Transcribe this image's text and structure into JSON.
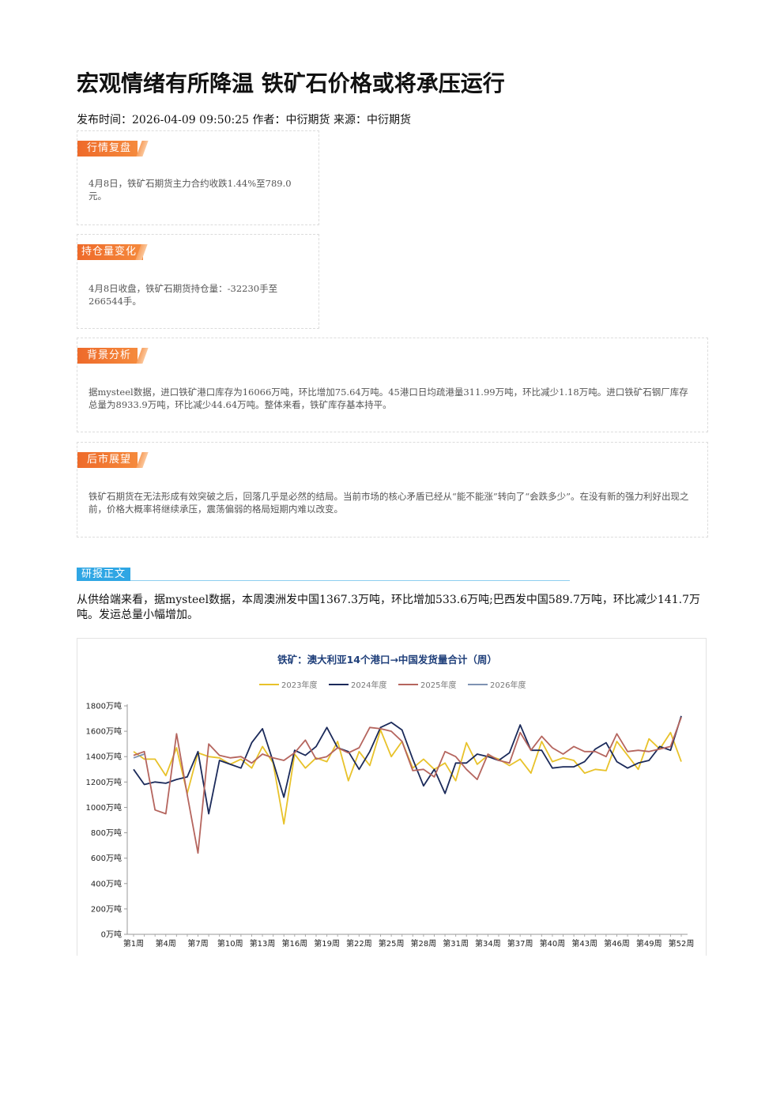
{
  "article": {
    "title": "宏观情绪有所降温 铁矿石价格或将承压运行",
    "meta": "发布时间：2026-04-09 09:50:25 作者：中衍期货 来源：中衍期货"
  },
  "sections": [
    {
      "tag": "行情复盘",
      "text": "4月8日，铁矿石期货主力合约收跌1.44%至789.0元。"
    },
    {
      "tag": "持仓量变化",
      "text": "4月8日收盘，铁矿石期货持仓量：-32230手至266544手。"
    },
    {
      "tag": "背景分析",
      "text": "据mysteel数据，进口铁矿港口库存为16066万吨，环比增加75.64万吨。45港口日均疏港量311.99万吨，环比减少1.18万吨。进口铁矿石钢厂库存总量为8933.9万吨，环比减少44.64万吨。整体来看，铁矿库存基本持平。"
    },
    {
      "tag": "后市展望",
      "text": "铁矿石期货在无法形成有效突破之后，回落几乎是必然的结局。当前市场的核心矛盾已经从“能不能涨”转向了“会跌多少”。在没有新的强力利好出现之前，价格大概率将继续承压，震荡偏弱的格局短期内难以改变。"
    }
  ],
  "report": {
    "tag": "研报正文",
    "text": "从供给端来看，据mysteel数据，本周澳洲发中国1367.3万吨，环比增加533.6万吨;巴西发中国589.7万吨，环比减少141.7万吨。发运总量小幅增加。"
  },
  "chart_data": {
    "type": "line",
    "title": "铁矿：澳大利亚14个港口→中国发货量合计（周）",
    "y_tick_labels": [
      "0万吨",
      "200万吨",
      "400万吨",
      "600万吨",
      "800万吨",
      "1000万吨",
      "1200万吨",
      "1400万吨",
      "1600万吨",
      "1800万吨"
    ],
    "y_ticks": [
      0,
      200,
      400,
      600,
      800,
      1000,
      1200,
      1400,
      1600,
      1800
    ],
    "ylim": [
      0,
      1800
    ],
    "x_tick_labels": [
      "第1周",
      "第4周",
      "第7周",
      "第10周",
      "第13周",
      "第16周",
      "第19周",
      "第22周",
      "第25周",
      "第28周",
      "第31周",
      "第34周",
      "第37周",
      "第40周",
      "第43周",
      "第46周",
      "第49周",
      "第52周"
    ],
    "x_tick_weeks": [
      1,
      4,
      7,
      10,
      13,
      16,
      19,
      22,
      25,
      28,
      31,
      34,
      37,
      40,
      43,
      46,
      49,
      52
    ],
    "legend_position": "top",
    "series": [
      {
        "name": "2023年度",
        "color": "#e8c22a",
        "values": [
          1440,
          1380,
          1380,
          1250,
          1470,
          1110,
          1430,
          1400,
          1390,
          1340,
          1380,
          1310,
          1480,
          1350,
          870,
          1420,
          1310,
          1390,
          1360,
          1520,
          1210,
          1440,
          1330,
          1610,
          1400,
          1520,
          1310,
          1380,
          1300,
          1350,
          1210,
          1510,
          1340,
          1410,
          1380,
          1330,
          1380,
          1270,
          1520,
          1360,
          1390,
          1370,
          1270,
          1300,
          1290,
          1520,
          1410,
          1300,
          1540,
          1460,
          1590,
          1360
        ]
      },
      {
        "name": "2024年度",
        "color": "#1b2a5a",
        "values": [
          1300,
          1180,
          1200,
          1190,
          1220,
          1240,
          1440,
          950,
          1370,
          1340,
          1310,
          1510,
          1620,
          1360,
          1080,
          1450,
          1410,
          1480,
          1630,
          1470,
          1440,
          1300,
          1440,
          1630,
          1670,
          1610,
          1380,
          1170,
          1300,
          1110,
          1350,
          1350,
          1420,
          1400,
          1370,
          1430,
          1650,
          1450,
          1450,
          1310,
          1320,
          1320,
          1360,
          1460,
          1510,
          1360,
          1310,
          1350,
          1370,
          1480,
          1450,
          1720
        ]
      },
      {
        "name": "2025年度",
        "color": "#b5655e",
        "values": [
          1410,
          1440,
          980,
          950,
          1580,
          1100,
          640,
          1500,
          1410,
          1390,
          1400,
          1350,
          1420,
          1390,
          1370,
          1430,
          1530,
          1380,
          1400,
          1470,
          1430,
          1470,
          1630,
          1620,
          1600,
          1520,
          1290,
          1300,
          1240,
          1440,
          1400,
          1300,
          1220,
          1420,
          1370,
          1350,
          1590,
          1450,
          1560,
          1470,
          1420,
          1480,
          1440,
          1440,
          1400,
          1580,
          1440,
          1450,
          1440,
          1460,
          1480,
          1710
        ]
      },
      {
        "name": "2026年度",
        "color": "#7e92b2",
        "values": [
          1390,
          1420
        ]
      }
    ]
  }
}
